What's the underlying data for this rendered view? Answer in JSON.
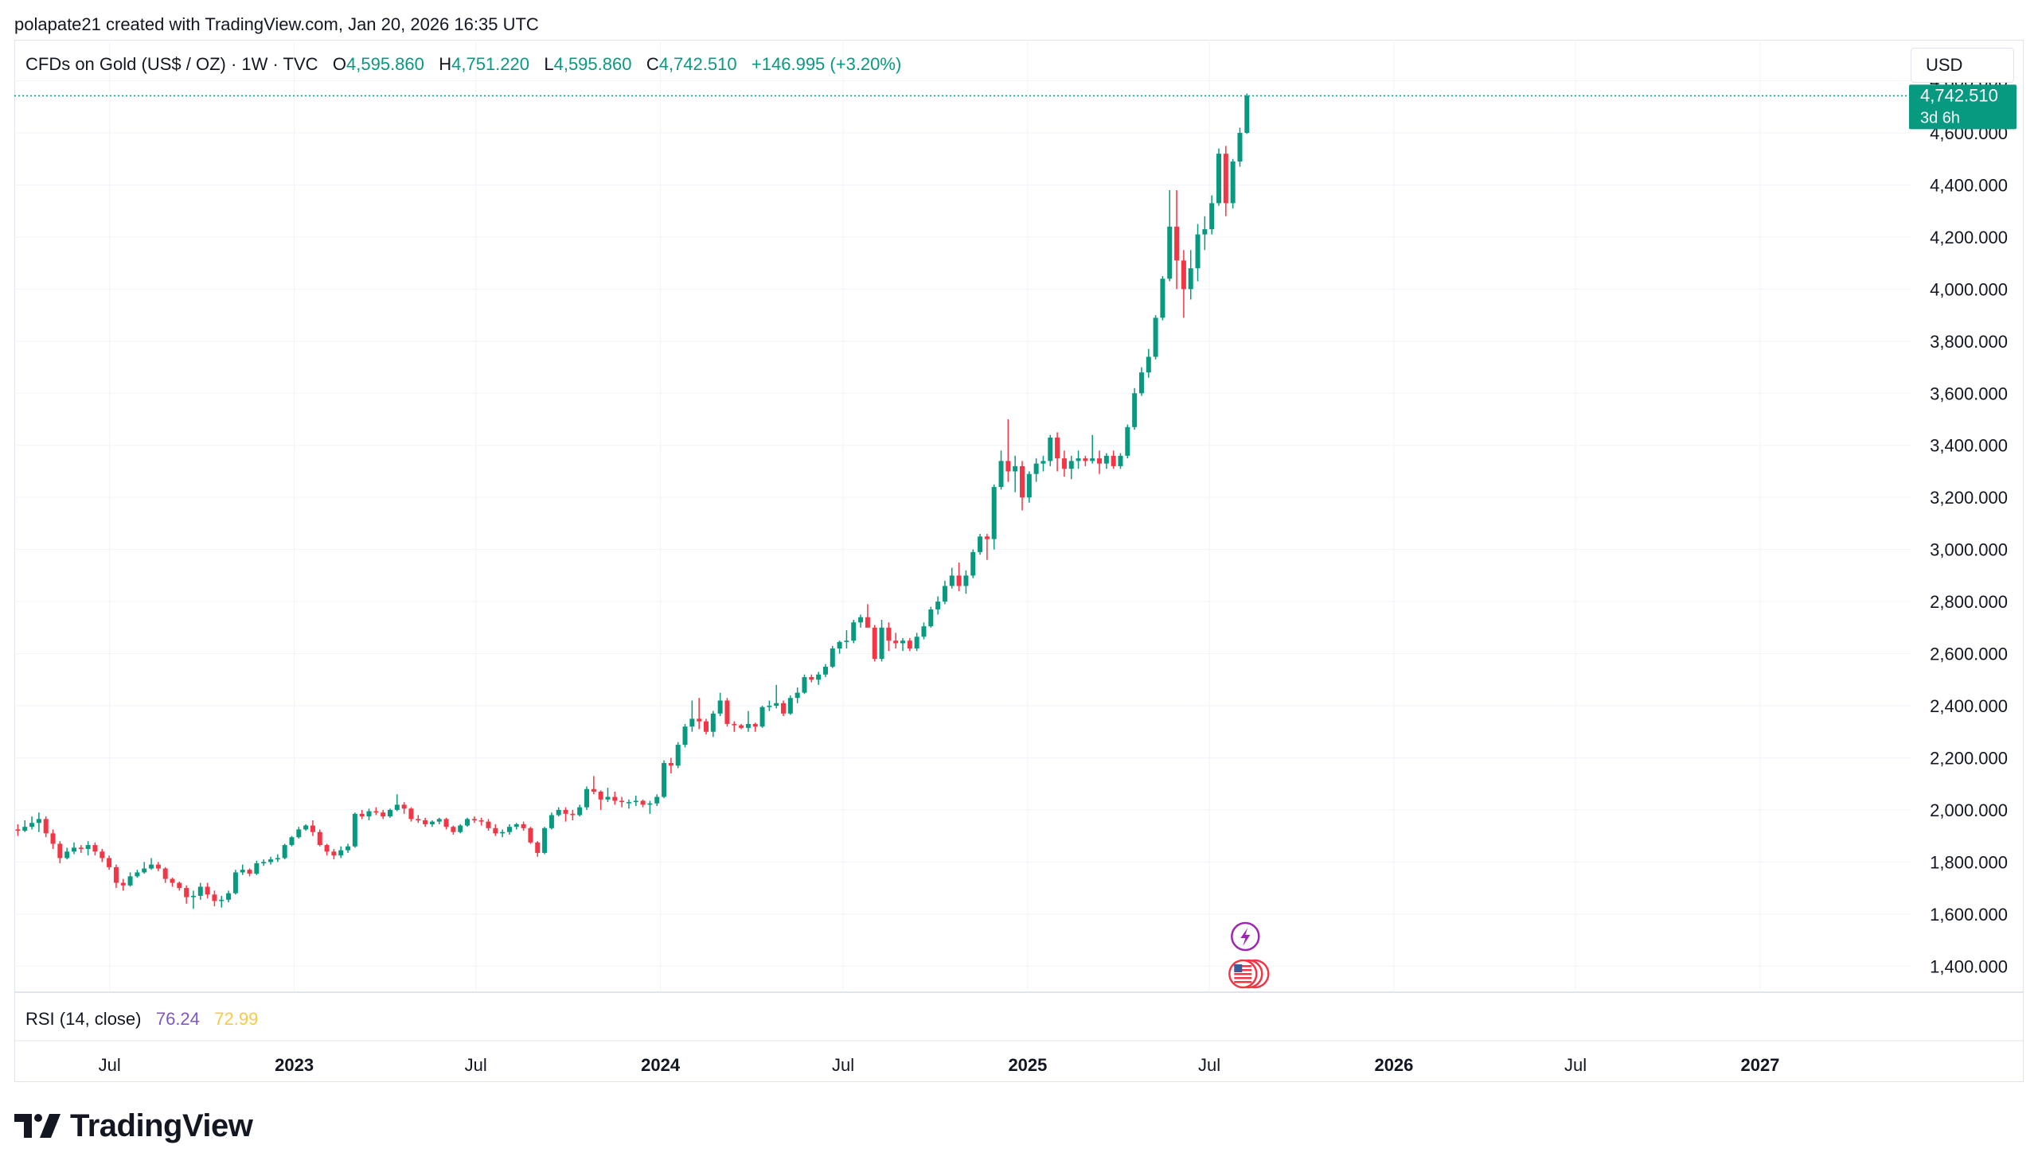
{
  "credit": "polapate21 created with TradingView.com, Jan 20, 2026 16:35 UTC",
  "header": {
    "symbol": "CFDs on Gold (US$ / OZ) · 1W · TVC",
    "open_label": "O",
    "open": "4,595.860",
    "high_label": "H",
    "high": "4,751.220",
    "low_label": "L",
    "low": "4,595.860",
    "close_label": "C",
    "close": "4,742.510",
    "change": "+146.995 (+3.20%)"
  },
  "currency_button": "USD",
  "price_tag": {
    "price": "4,742.510",
    "countdown": "3d 6h"
  },
  "rsi": {
    "label": "RSI (14, close)",
    "value": "76.24",
    "ma": "72.99"
  },
  "brand": "TradingView",
  "colors": {
    "up": "#089981",
    "down": "#f23645",
    "rsi": "#7e57c2",
    "rsi_ma": "#f7c948",
    "grid": "#f0f3fa"
  },
  "icons": [
    "lightning-event-icon",
    "us-flag-event-icon"
  ],
  "chart_data": {
    "type": "candlestick",
    "title": "CFDs on Gold (US$ / OZ)",
    "timeframe": "1W",
    "currency": "USD",
    "ylim": [
      1300,
      4820
    ],
    "y_ticks": [
      1400,
      1600,
      1800,
      2000,
      2200,
      2400,
      2600,
      2800,
      3000,
      3200,
      3400,
      3600,
      3800,
      4000,
      4200,
      4400,
      4600,
      4800
    ],
    "y_tick_labels": [
      "1,400.000",
      "1,600.000",
      "1,800.000",
      "2,000.000",
      "2,200.000",
      "2,400.000",
      "2,600.000",
      "2,800.000",
      "3,000.000",
      "3,200.000",
      "3,400.000",
      "3,600.000",
      "3,800.000",
      "4,000.000",
      "4,200.000",
      "4,400.000",
      "4,600.000",
      "4,800.000"
    ],
    "x_range": [
      "2022-03-28",
      "2027-05-31"
    ],
    "x_ticks": [
      {
        "date": "2022-07-01",
        "label": "Jul",
        "bold": false
      },
      {
        "date": "2023-01-01",
        "label": "2023",
        "bold": true
      },
      {
        "date": "2023-07-01",
        "label": "Jul",
        "bold": false
      },
      {
        "date": "2024-01-01",
        "label": "2024",
        "bold": true
      },
      {
        "date": "2024-07-01",
        "label": "Jul",
        "bold": false
      },
      {
        "date": "2025-01-01",
        "label": "2025",
        "bold": true
      },
      {
        "date": "2025-07-01",
        "label": "Jul",
        "bold": false
      },
      {
        "date": "2026-01-01",
        "label": "2026",
        "bold": true
      },
      {
        "date": "2026-07-01",
        "label": "Jul",
        "bold": false
      },
      {
        "date": "2027-01-01",
        "label": "2027",
        "bold": true
      }
    ],
    "first_week": "2022-03-28",
    "candles": [
      [
        1925,
        1945,
        1900,
        1920
      ],
      [
        1920,
        1960,
        1915,
        1935
      ],
      [
        1935,
        1975,
        1925,
        1950
      ],
      [
        1950,
        1990,
        1915,
        1965
      ],
      [
        1965,
        1975,
        1895,
        1910
      ],
      [
        1910,
        1925,
        1850,
        1870
      ],
      [
        1870,
        1880,
        1795,
        1815
      ],
      [
        1815,
        1855,
        1810,
        1840
      ],
      [
        1840,
        1875,
        1830,
        1855
      ],
      [
        1855,
        1865,
        1835,
        1850
      ],
      [
        1850,
        1880,
        1825,
        1865
      ],
      [
        1865,
        1875,
        1825,
        1840
      ],
      [
        1840,
        1850,
        1800,
        1815
      ],
      [
        1815,
        1825,
        1770,
        1780
      ],
      [
        1780,
        1790,
        1700,
        1720
      ],
      [
        1720,
        1735,
        1690,
        1710
      ],
      [
        1710,
        1760,
        1705,
        1745
      ],
      [
        1745,
        1770,
        1740,
        1760
      ],
      [
        1760,
        1800,
        1755,
        1775
      ],
      [
        1775,
        1815,
        1770,
        1790
      ],
      [
        1790,
        1800,
        1765,
        1775
      ],
      [
        1775,
        1780,
        1720,
        1735
      ],
      [
        1735,
        1740,
        1705,
        1720
      ],
      [
        1720,
        1725,
        1690,
        1700
      ],
      [
        1700,
        1710,
        1640,
        1665
      ],
      [
        1665,
        1690,
        1620,
        1670
      ],
      [
        1670,
        1720,
        1655,
        1705
      ],
      [
        1705,
        1720,
        1660,
        1675
      ],
      [
        1675,
        1690,
        1630,
        1650
      ],
      [
        1650,
        1670,
        1625,
        1655
      ],
      [
        1655,
        1690,
        1645,
        1680
      ],
      [
        1680,
        1770,
        1675,
        1760
      ],
      [
        1760,
        1790,
        1750,
        1770
      ],
      [
        1770,
        1775,
        1745,
        1755
      ],
      [
        1755,
        1805,
        1750,
        1795
      ],
      [
        1795,
        1810,
        1785,
        1800
      ],
      [
        1800,
        1820,
        1790,
        1810
      ],
      [
        1810,
        1830,
        1800,
        1815
      ],
      [
        1815,
        1870,
        1810,
        1865
      ],
      [
        1865,
        1900,
        1860,
        1895
      ],
      [
        1895,
        1935,
        1890,
        1925
      ],
      [
        1925,
        1945,
        1920,
        1940
      ],
      [
        1940,
        1960,
        1900,
        1915
      ],
      [
        1915,
        1925,
        1860,
        1865
      ],
      [
        1865,
        1870,
        1825,
        1840
      ],
      [
        1840,
        1850,
        1810,
        1825
      ],
      [
        1825,
        1860,
        1815,
        1845
      ],
      [
        1845,
        1870,
        1835,
        1860
      ],
      [
        1860,
        1990,
        1855,
        1985
      ],
      [
        1985,
        2000,
        1965,
        1975
      ],
      [
        1975,
        2005,
        1960,
        1995
      ],
      [
        1995,
        2010,
        1980,
        1990
      ],
      [
        1990,
        2000,
        1965,
        1975
      ],
      [
        1975,
        2005,
        1970,
        2000
      ],
      [
        2000,
        2060,
        1995,
        2020
      ],
      [
        2020,
        2030,
        1985,
        2005
      ],
      [
        2005,
        2010,
        1955,
        1965
      ],
      [
        1965,
        1980,
        1950,
        1960
      ],
      [
        1960,
        1970,
        1935,
        1945
      ],
      [
        1945,
        1960,
        1935,
        1955
      ],
      [
        1955,
        1970,
        1945,
        1965
      ],
      [
        1965,
        1970,
        1925,
        1935
      ],
      [
        1935,
        1940,
        1905,
        1915
      ],
      [
        1915,
        1945,
        1910,
        1940
      ],
      [
        1940,
        1970,
        1935,
        1965
      ],
      [
        1965,
        1975,
        1950,
        1960
      ],
      [
        1960,
        1970,
        1940,
        1955
      ],
      [
        1955,
        1965,
        1920,
        1930
      ],
      [
        1930,
        1945,
        1900,
        1910
      ],
      [
        1910,
        1925,
        1895,
        1915
      ],
      [
        1915,
        1945,
        1905,
        1935
      ],
      [
        1935,
        1950,
        1925,
        1945
      ],
      [
        1945,
        1955,
        1920,
        1930
      ],
      [
        1930,
        1935,
        1870,
        1875
      ],
      [
        1875,
        1880,
        1820,
        1835
      ],
      [
        1835,
        1935,
        1830,
        1930
      ],
      [
        1930,
        1990,
        1925,
        1980
      ],
      [
        1980,
        2010,
        1975,
        2000
      ],
      [
        2000,
        2010,
        1955,
        1985
      ],
      [
        1985,
        2000,
        1960,
        1980
      ],
      [
        1980,
        2020,
        1975,
        2010
      ],
      [
        2010,
        2090,
        2000,
        2080
      ],
      [
        2080,
        2130,
        2060,
        2070
      ],
      [
        2070,
        2075,
        2000,
        2040
      ],
      [
        2040,
        2085,
        2030,
        2050
      ],
      [
        2050,
        2070,
        2020,
        2035
      ],
      [
        2035,
        2050,
        2010,
        2030
      ],
      [
        2030,
        2040,
        2005,
        2030
      ],
      [
        2030,
        2055,
        2015,
        2035
      ],
      [
        2035,
        2040,
        2010,
        2020
      ],
      [
        2020,
        2035,
        1985,
        2025
      ],
      [
        2025,
        2060,
        2015,
        2050
      ],
      [
        2050,
        2190,
        2045,
        2180
      ],
      [
        2180,
        2200,
        2140,
        2170
      ],
      [
        2170,
        2260,
        2160,
        2250
      ],
      [
        2250,
        2330,
        2240,
        2320
      ],
      [
        2320,
        2420,
        2300,
        2350
      ],
      [
        2350,
        2430,
        2310,
        2340
      ],
      [
        2340,
        2350,
        2290,
        2300
      ],
      [
        2300,
        2380,
        2280,
        2370
      ],
      [
        2370,
        2450,
        2360,
        2420
      ],
      [
        2420,
        2430,
        2320,
        2330
      ],
      [
        2330,
        2340,
        2300,
        2325
      ],
      [
        2325,
        2330,
        2310,
        2315
      ],
      [
        2315,
        2380,
        2300,
        2330
      ],
      [
        2330,
        2335,
        2300,
        2320
      ],
      [
        2320,
        2400,
        2315,
        2395
      ],
      [
        2395,
        2420,
        2380,
        2400
      ],
      [
        2400,
        2480,
        2390,
        2410
      ],
      [
        2410,
        2420,
        2360,
        2370
      ],
      [
        2370,
        2440,
        2365,
        2430
      ],
      [
        2430,
        2470,
        2410,
        2450
      ],
      [
        2450,
        2520,
        2445,
        2510
      ],
      [
        2510,
        2520,
        2490,
        2500
      ],
      [
        2500,
        2530,
        2480,
        2520
      ],
      [
        2520,
        2560,
        2510,
        2550
      ],
      [
        2550,
        2630,
        2545,
        2620
      ],
      [
        2620,
        2650,
        2600,
        2645
      ],
      [
        2645,
        2690,
        2620,
        2650
      ],
      [
        2650,
        2730,
        2640,
        2720
      ],
      [
        2720,
        2750,
        2700,
        2740
      ],
      [
        2740,
        2790,
        2720,
        2700
      ],
      [
        2700,
        2710,
        2570,
        2580
      ],
      [
        2580,
        2730,
        2570,
        2700
      ],
      [
        2700,
        2720,
        2610,
        2650
      ],
      [
        2650,
        2680,
        2620,
        2640
      ],
      [
        2640,
        2660,
        2610,
        2650
      ],
      [
        2650,
        2660,
        2610,
        2620
      ],
      [
        2620,
        2680,
        2610,
        2665
      ],
      [
        2665,
        2720,
        2655,
        2705
      ],
      [
        2705,
        2780,
        2700,
        2770
      ],
      [
        2770,
        2820,
        2750,
        2800
      ],
      [
        2800,
        2880,
        2790,
        2860
      ],
      [
        2860,
        2930,
        2850,
        2900
      ],
      [
        2900,
        2950,
        2840,
        2860
      ],
      [
        2860,
        2920,
        2830,
        2900
      ],
      [
        2900,
        3000,
        2890,
        2990
      ],
      [
        2990,
        3060,
        2980,
        3050
      ],
      [
        3050,
        3060,
        2960,
        3040
      ],
      [
        3040,
        3250,
        3000,
        3240
      ],
      [
        3240,
        3380,
        3230,
        3340
      ],
      [
        3340,
        3500,
        3260,
        3300
      ],
      [
        3300,
        3360,
        3220,
        3320
      ],
      [
        3320,
        3340,
        3150,
        3200
      ],
      [
        3200,
        3300,
        3180,
        3290
      ],
      [
        3290,
        3350,
        3260,
        3330
      ],
      [
        3330,
        3360,
        3300,
        3340
      ],
      [
        3340,
        3440,
        3320,
        3430
      ],
      [
        3430,
        3450,
        3300,
        3350
      ],
      [
        3350,
        3380,
        3280,
        3310
      ],
      [
        3310,
        3360,
        3270,
        3340
      ],
      [
        3340,
        3380,
        3310,
        3350
      ],
      [
        3350,
        3360,
        3320,
        3340
      ],
      [
        3340,
        3440,
        3330,
        3350
      ],
      [
        3350,
        3380,
        3290,
        3330
      ],
      [
        3330,
        3370,
        3310,
        3360
      ],
      [
        3360,
        3380,
        3310,
        3320
      ],
      [
        3320,
        3370,
        3310,
        3360
      ],
      [
        3360,
        3480,
        3350,
        3470
      ],
      [
        3470,
        3620,
        3460,
        3600
      ],
      [
        3600,
        3700,
        3590,
        3680
      ],
      [
        3680,
        3770,
        3660,
        3740
      ],
      [
        3740,
        3900,
        3730,
        3890
      ],
      [
        3890,
        4050,
        3880,
        4040
      ],
      [
        4040,
        4380,
        4030,
        4240
      ],
      [
        4240,
        4380,
        4000,
        4110
      ],
      [
        4110,
        4150,
        3890,
        4000
      ],
      [
        4000,
        4150,
        3960,
        4080
      ],
      [
        4080,
        4250,
        4030,
        4210
      ],
      [
        4210,
        4280,
        4150,
        4230
      ],
      [
        4230,
        4360,
        4210,
        4330
      ],
      [
        4330,
        4540,
        4320,
        4520
      ],
      [
        4520,
        4550,
        4280,
        4330
      ],
      [
        4330,
        4500,
        4310,
        4490
      ],
      [
        4490,
        4620,
        4470,
        4600
      ],
      [
        4600,
        4751.22,
        4595.86,
        4742.51
      ]
    ],
    "rsi_14": 76.24,
    "rsi_ma": 72.99
  }
}
